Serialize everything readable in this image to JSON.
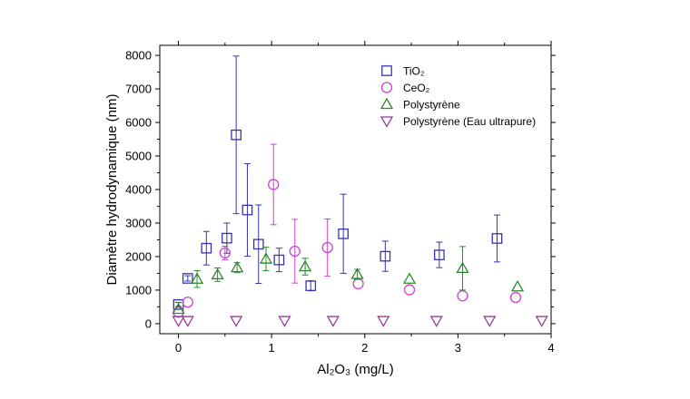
{
  "chart_data": {
    "type": "scatter",
    "xlabel": "Al₂O₃ (mg/L)",
    "ylabel": "Diamètre hydrodynamique (nm)",
    "xlim": [
      -0.2,
      4.0
    ],
    "ylim": [
      -300,
      8300
    ],
    "x_ticks": [
      0,
      1,
      2,
      3,
      4
    ],
    "y_ticks": [
      0,
      1000,
      2000,
      3000,
      4000,
      5000,
      6000,
      7000,
      8000
    ],
    "legend_position": "top-right",
    "grid": false,
    "series": [
      {
        "name": "TiO₂",
        "marker": "square",
        "color": "#3535b0",
        "points": [
          {
            "x": 0.0,
            "y": 570,
            "err": 60
          },
          {
            "x": 0.1,
            "y": 1350,
            "err": 80
          },
          {
            "x": 0.3,
            "y": 2250,
            "err": 500
          },
          {
            "x": 0.52,
            "y": 2550,
            "err": 450
          },
          {
            "x": 0.62,
            "y": 5630,
            "err": 2350
          },
          {
            "x": 0.74,
            "y": 3390,
            "err": 1380
          },
          {
            "x": 0.86,
            "y": 2370,
            "err": 1170
          },
          {
            "x": 1.08,
            "y": 1900,
            "err": 350
          },
          {
            "x": 1.42,
            "y": 1130,
            "err": 150
          },
          {
            "x": 1.77,
            "y": 2680,
            "err": 1180
          },
          {
            "x": 2.22,
            "y": 2010,
            "err": 450
          },
          {
            "x": 2.8,
            "y": 2050,
            "err": 380
          },
          {
            "x": 3.42,
            "y": 2540,
            "err": 700
          }
        ]
      },
      {
        "name": "CeO₂",
        "marker": "circle",
        "color": "#d040d0",
        "points": [
          {
            "x": 0.0,
            "y": 340,
            "err": 0
          },
          {
            "x": 0.1,
            "y": 640,
            "err": 0
          },
          {
            "x": 0.5,
            "y": 2110,
            "err": 200
          },
          {
            "x": 1.02,
            "y": 4150,
            "err": 1200
          },
          {
            "x": 1.25,
            "y": 2160,
            "err": 950
          },
          {
            "x": 1.6,
            "y": 2270,
            "err": 850
          },
          {
            "x": 1.93,
            "y": 1190,
            "err": 0
          },
          {
            "x": 2.48,
            "y": 1010,
            "err": 0
          },
          {
            "x": 3.05,
            "y": 830,
            "err": 0
          },
          {
            "x": 3.62,
            "y": 780,
            "err": 0
          }
        ]
      },
      {
        "name": "Polystyrène",
        "marker": "triangle-up",
        "color": "#2a8a2a",
        "points": [
          {
            "x": 0.0,
            "y": 430,
            "err": 0
          },
          {
            "x": 0.2,
            "y": 1330,
            "err": 250
          },
          {
            "x": 0.42,
            "y": 1460,
            "err": 200
          },
          {
            "x": 0.63,
            "y": 1670,
            "err": 150
          },
          {
            "x": 0.94,
            "y": 1930,
            "err": 350
          },
          {
            "x": 1.36,
            "y": 1700,
            "err": 250
          },
          {
            "x": 1.92,
            "y": 1470,
            "err": 150
          },
          {
            "x": 2.48,
            "y": 1330,
            "err": 0
          },
          {
            "x": 3.05,
            "y": 1650,
            "err": 650
          },
          {
            "x": 3.64,
            "y": 1100,
            "err": 0
          }
        ]
      },
      {
        "name": "Polystyrène (Eau ultrapure)",
        "marker": "triangle-down",
        "color": "#9a3a9a",
        "points": [
          {
            "x": 0.0,
            "y": 90,
            "err": 0
          },
          {
            "x": 0.1,
            "y": 90,
            "err": 0
          },
          {
            "x": 0.62,
            "y": 90,
            "err": 0
          },
          {
            "x": 1.14,
            "y": 90,
            "err": 0
          },
          {
            "x": 1.66,
            "y": 90,
            "err": 0
          },
          {
            "x": 2.2,
            "y": 90,
            "err": 0
          },
          {
            "x": 2.77,
            "y": 90,
            "err": 0
          },
          {
            "x": 3.34,
            "y": 90,
            "err": 0
          },
          {
            "x": 3.9,
            "y": 90,
            "err": 0
          }
        ]
      }
    ]
  }
}
